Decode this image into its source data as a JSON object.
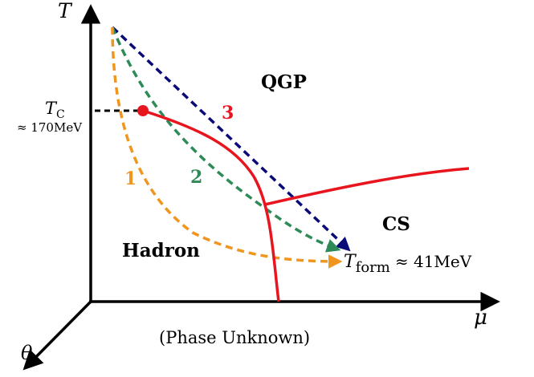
{
  "axes": {
    "y_label": "T",
    "x_label": "μ",
    "z_label": "θ"
  },
  "critical_temperature": {
    "symbol": "T",
    "subscript": "C",
    "value": "≈ 170MeV"
  },
  "formation_temperature": {
    "symbol": "T",
    "subscript": "form",
    "value": "≈ 41MeV"
  },
  "regions": {
    "qgp": "QGP",
    "hadron": "Hadron",
    "cs": "CS",
    "unknown": "(Phase Unknown)"
  },
  "paths": [
    {
      "label": "1",
      "color": "#f0961e"
    },
    {
      "label": "2",
      "color": "#2e8b57"
    },
    {
      "label": "3",
      "color": "#0a0a78"
    }
  ],
  "colors": {
    "phase_boundary": "#e8141e",
    "axis": "#000000"
  }
}
